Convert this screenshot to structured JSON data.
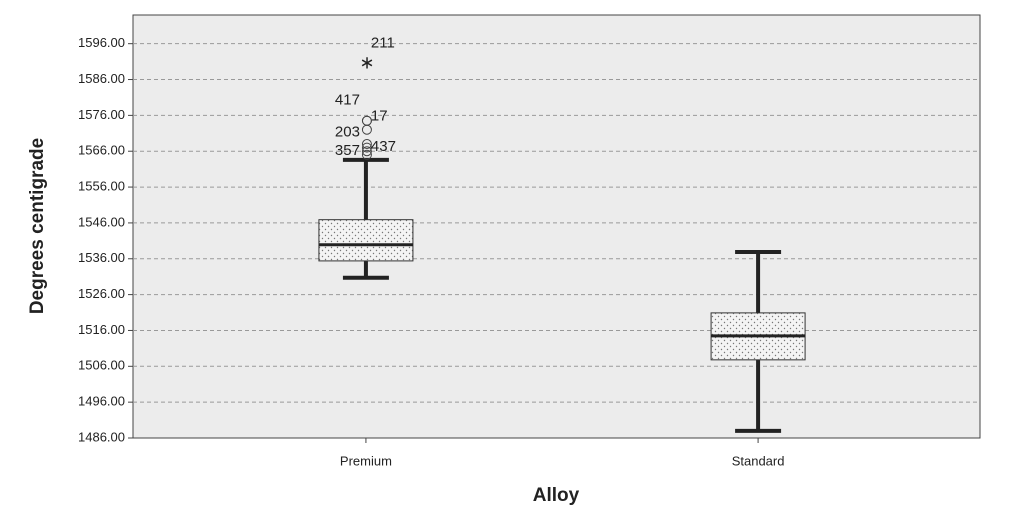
{
  "chart_data": {
    "type": "boxplot",
    "x_label": "Alloy",
    "y_label": "Degrees centigrade",
    "categories": [
      "Premium",
      "Standard"
    ],
    "boxes": [
      {
        "whisker_low": 1530.7,
        "q1": 1535.4,
        "median": 1539.9,
        "q3": 1546.9,
        "whisker_high": 1563.6,
        "outliers": [
          {
            "value": 1591,
            "label": "211",
            "kind": "extreme"
          },
          {
            "value": 1574.5,
            "label": "417"
          },
          {
            "value": 1574.5,
            "label": "17"
          },
          {
            "value": 1572,
            "label": "203"
          },
          {
            "value": 1568
          },
          {
            "value": 1567
          },
          {
            "value": 1566,
            "label": "437"
          },
          {
            "value": 1565,
            "label": "357"
          }
        ]
      },
      {
        "whisker_low": 1488,
        "q1": 1507.8,
        "median": 1514.5,
        "q3": 1520.9,
        "whisker_high": 1537.9,
        "outliers": []
      }
    ],
    "ylim": [
      1486,
      1604
    ],
    "yticks": [
      {
        "value": 1486,
        "label": "1486.00"
      },
      {
        "value": 1496,
        "label": "1496.00"
      },
      {
        "value": 1506,
        "label": "1506.00"
      },
      {
        "value": 1516,
        "label": "1516.00"
      },
      {
        "value": 1526,
        "label": "1526.00"
      },
      {
        "value": 1536,
        "label": "1536.00"
      },
      {
        "value": 1546,
        "label": "1546.00"
      },
      {
        "value": 1556,
        "label": "1556.00"
      },
      {
        "value": 1566,
        "label": "1566.00"
      },
      {
        "value": 1576,
        "label": "1576.00"
      },
      {
        "value": 1586,
        "label": "1586.00"
      },
      {
        "value": 1596,
        "label": "1596.00"
      }
    ],
    "grid": true
  }
}
